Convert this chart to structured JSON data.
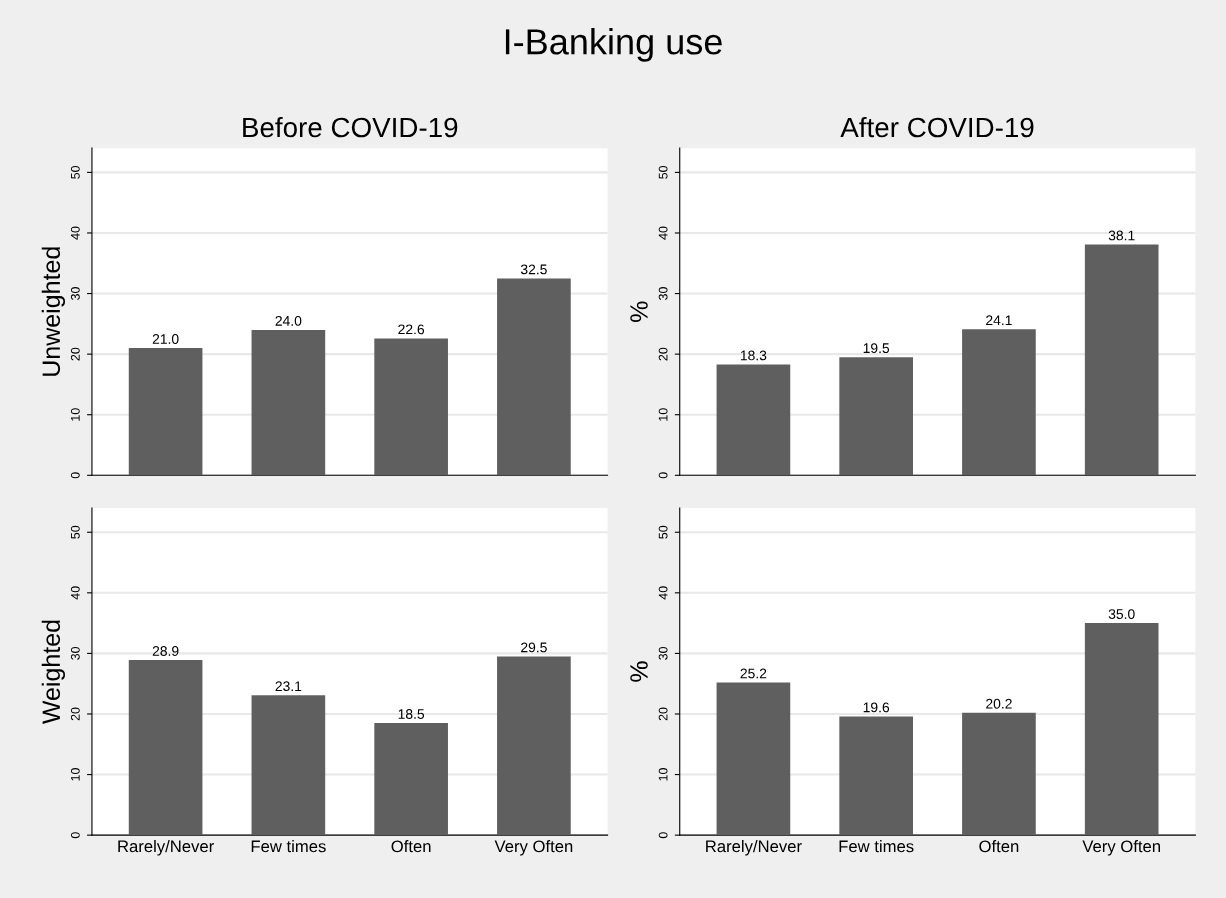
{
  "chart_data": [
    {
      "type": "bar",
      "title": "Before COVID-19",
      "annotations": [
        "I-Banking use"
      ],
      "ylabel": "Unweighted",
      "categories": [
        null,
        null,
        null,
        null
      ],
      "values": [
        21.0,
        24.0,
        22.6,
        32.5
      ],
      "value_labels": [
        "21.0",
        "24.0",
        "22.6",
        "32.5"
      ],
      "color": "#5f5f5f",
      "ylim": [
        0,
        54
      ],
      "yticks": [
        0,
        10,
        20,
        30,
        40,
        50
      ],
      "grid": "y",
      "tick_labels": "y"
    },
    {
      "type": "bar",
      "title": "After COVID-19",
      "ylabel": "%",
      "categories": [
        null,
        null,
        null,
        null
      ],
      "values": [
        18.3,
        19.5,
        24.1,
        38.1
      ],
      "value_labels": [
        "18.3",
        "19.5",
        "24.1",
        "38.1"
      ],
      "color": "#5f5f5f",
      "ylim": [
        0,
        54
      ],
      "yticks": [
        0,
        10,
        20,
        30,
        40,
        50
      ],
      "grid": "y",
      "tick_labels": "y"
    },
    {
      "type": "bar",
      "ylabel": "Weighted",
      "categories": [
        "Rarely/Never",
        "Few times",
        "Often",
        "Very Often"
      ],
      "values": [
        28.9,
        23.1,
        18.5,
        29.5
      ],
      "value_labels": [
        "28.9",
        "23.1",
        "18.5",
        "29.5"
      ],
      "color": "#5f5f5f",
      "ylim": [
        0,
        54
      ],
      "yticks": [
        0,
        10,
        20,
        30,
        40,
        50
      ],
      "grid": "y"
    },
    {
      "type": "bar",
      "ylabel": "%",
      "categories": [
        "Rarely/Never",
        "Few times",
        "Often",
        "Very Often"
      ],
      "values": [
        25.2,
        19.6,
        20.2,
        35.0
      ],
      "value_labels": [
        "25.2",
        "19.6",
        "20.2",
        "35.0"
      ],
      "color": "#5f5f5f",
      "ylim": [
        0,
        54
      ],
      "yticks": [
        0,
        10,
        20,
        30,
        40,
        50
      ],
      "grid": "y"
    }
  ]
}
